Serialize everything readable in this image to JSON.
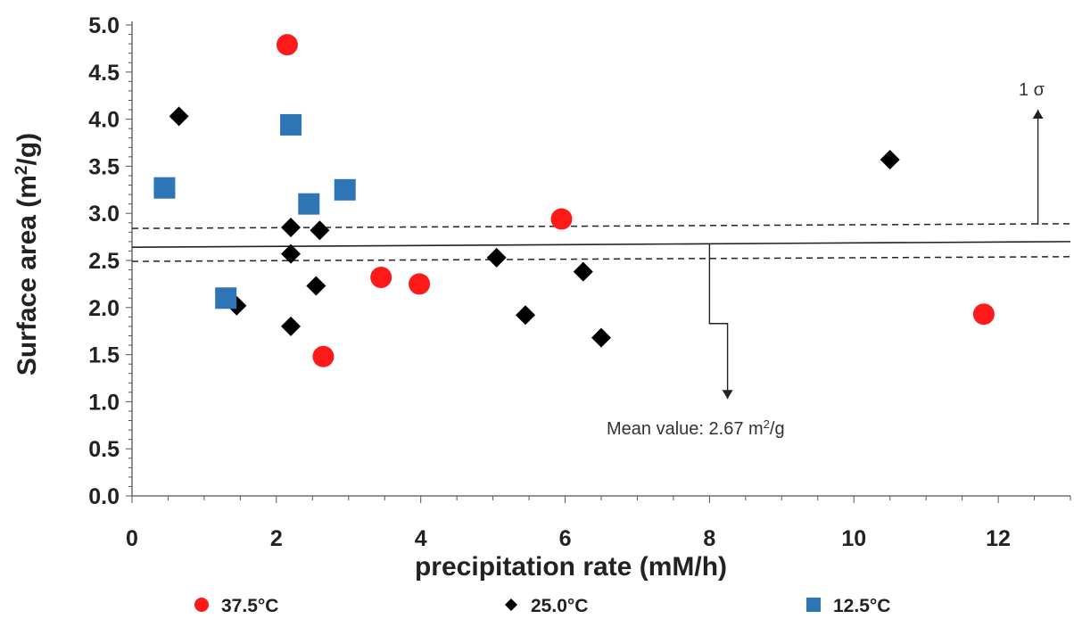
{
  "chart_data": {
    "type": "scatter",
    "xlabel": "precipitation rate (mM/h)",
    "ylabel_main": "Surface area (m",
    "ylabel_sup": "2",
    "ylabel_end": "/g)",
    "xlim": [
      0,
      13
    ],
    "ylim": [
      0,
      5
    ],
    "xticks": [
      "0",
      "2",
      "4",
      "6",
      "8",
      "10",
      "12"
    ],
    "xtick_values": [
      0,
      2,
      4,
      6,
      8,
      10,
      12
    ],
    "yticks": [
      "0.0",
      "0.5",
      "1.0",
      "1.5",
      "2.0",
      "2.5",
      "3.0",
      "3.5",
      "4.0",
      "4.5",
      "5.0"
    ],
    "ytick_values": [
      0,
      0.5,
      1,
      1.5,
      2,
      2.5,
      3,
      3.5,
      4,
      4.5,
      5
    ],
    "grid": false,
    "legend_position": "bottom",
    "series": [
      {
        "name": "37.5°C",
        "marker": "circle",
        "color": "#ff1a1a",
        "points": [
          [
            2.15,
            4.79
          ],
          [
            2.65,
            1.48
          ],
          [
            3.45,
            2.32
          ],
          [
            3.98,
            2.25
          ],
          [
            5.95,
            2.94
          ],
          [
            11.8,
            1.93
          ]
        ]
      },
      {
        "name": "25.0°C",
        "marker": "diamond",
        "color": "#000000",
        "points": [
          [
            0.65,
            4.03
          ],
          [
            1.45,
            2.02
          ],
          [
            2.2,
            2.85
          ],
          [
            2.2,
            2.57
          ],
          [
            2.2,
            1.8
          ],
          [
            2.6,
            2.82
          ],
          [
            2.55,
            2.23
          ],
          [
            5.05,
            2.53
          ],
          [
            5.45,
            1.92
          ],
          [
            6.25,
            2.38
          ],
          [
            6.5,
            1.68
          ],
          [
            10.5,
            3.57
          ]
        ]
      },
      {
        "name": "12.5°C",
        "marker": "square",
        "color": "#2e75b6",
        "points": [
          [
            0.45,
            3.27
          ],
          [
            1.3,
            2.1
          ],
          [
            2.2,
            3.94
          ],
          [
            2.45,
            3.1
          ],
          [
            2.95,
            3.25
          ]
        ]
      }
    ],
    "mean_line": {
      "value": 2.67,
      "slope_start": 2.64,
      "slope_end": 2.7
    },
    "sigma_band": {
      "upper_start": 2.84,
      "upper_end": 2.89,
      "lower_start": 2.49,
      "lower_end": 2.54
    },
    "annotations": {
      "mean_label": "Mean value: 2.67 m",
      "mean_label_sup": "2",
      "mean_label_end": "/g",
      "sigma_label": "1 σ"
    },
    "legend": [
      {
        "label": "37.5°C",
        "marker": "circle",
        "color": "#ff1a1a"
      },
      {
        "label": "25.0°C",
        "marker": "diamond",
        "color": "#000000"
      },
      {
        "label": "12.5°C",
        "marker": "square",
        "color": "#2e75b6"
      }
    ]
  }
}
